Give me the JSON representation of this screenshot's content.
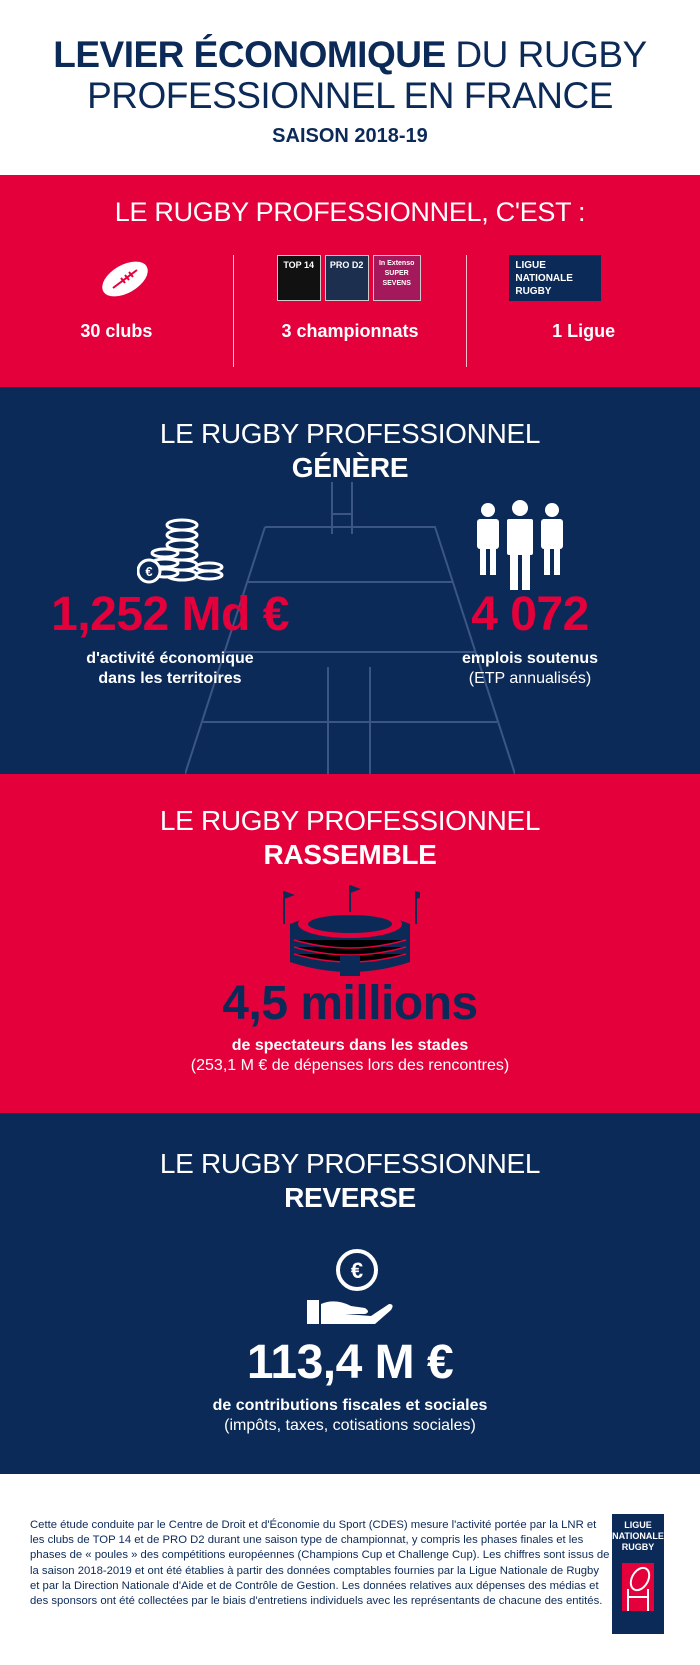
{
  "header": {
    "title_bold": "LEVIER ÉCONOMIQUE",
    "title_rest": " DU RUGBY",
    "title_line2": "PROFESSIONNEL EN FRANCE",
    "season": "SAISON 2018-19"
  },
  "colors": {
    "red": "#e4003b",
    "navy": "#0c2a58"
  },
  "intro": {
    "heading": "LE RUGBY PROFESSIONNEL, C'EST :",
    "items": [
      {
        "icon": "rugby-ball-icon",
        "label": "30 clubs"
      },
      {
        "icon": "championship-logos",
        "label": "3 championnats",
        "logos": [
          "TOP 14",
          "PRO D2",
          "In Extenso SUPER SEVENS"
        ]
      },
      {
        "icon": "lnr-logo",
        "label": "1 Ligue",
        "logo_text": "LIGUE NATIONALE RUGBY"
      }
    ]
  },
  "genere": {
    "line1": "LE RUGBY PROFESSIONNEL",
    "line2": "GÉNÈRE",
    "left": {
      "value": "1,252 Md €",
      "desc1": "d'activité économique",
      "desc2": "dans les territoires"
    },
    "right": {
      "value": "4 072",
      "desc1": "emplois soutenus",
      "desc2": "(ETP annualisés)"
    }
  },
  "rassemble": {
    "line1": "LE RUGBY PROFESSIONNEL",
    "line2": "RASSEMBLE",
    "value": "4,5 millions",
    "desc1": "de spectateurs dans les stades",
    "desc2": "(253,1 M € de dépenses lors des rencontres)"
  },
  "reverse": {
    "line1": "LE RUGBY PROFESSIONNEL",
    "line2": "REVERSE",
    "value": "113,4 M €",
    "desc1": "de contributions fiscales et sociales",
    "desc2": "(impôts, taxes, cotisations sociales)"
  },
  "footer": {
    "text": "Cette étude conduite par le Centre de Droit et d'Économie du Sport (CDES) mesure l'activité portée par la LNR et les clubs de TOP 14 et de PRO D2 durant une saison type de championnat, y compris les phases finales et les phases de « poules » des compétitions européennes (Champions Cup et Challenge Cup). Les chiffres sont issus de la saison 2018-2019 et ont été établies à partir des données comptables fournies par la Ligue Nationale de Rugby et par la Direction Nationale d'Aide et de Contrôle de Gestion. Les données relatives aux dépenses des médias et des sponsors ont été collectées par le biais d'entretiens individuels avec les représentants de chacune des entités.",
    "logo_text": "LIGUE NATIONALE RUGBY"
  }
}
